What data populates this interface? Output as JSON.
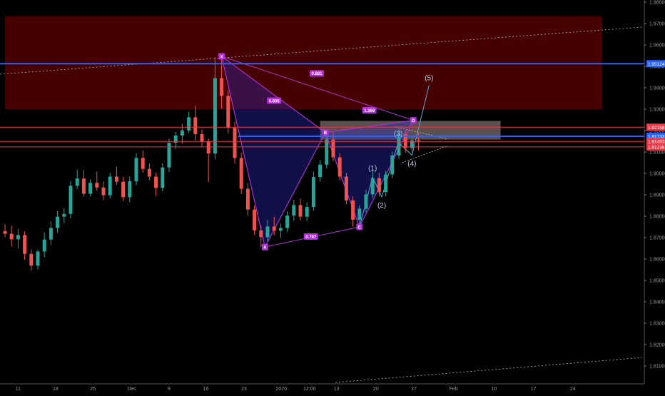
{
  "chart_data": {
    "type": "candlestick",
    "instrument_note": "",
    "y_ticks": [
      "1.98000",
      "1.97000",
      "1.96000",
      "1.95000",
      "1.94000",
      "1.93000",
      "1.92000",
      "1.91000",
      "1.90000",
      "1.89000",
      "1.88000",
      "1.87000",
      "1.86000",
      "1.85000",
      "1.84000",
      "1.83000",
      "1.82000",
      "1.81000"
    ],
    "x_ticks": [
      {
        "label": "11",
        "t": 2
      },
      {
        "label": "18",
        "t": 7.7
      },
      {
        "label": "25",
        "t": 13.4
      },
      {
        "label": "Dec",
        "t": 19.3
      },
      {
        "label": "9",
        "t": 25
      },
      {
        "label": "16",
        "t": 30.6
      },
      {
        "label": "23",
        "t": 36.4
      },
      {
        "label": "2020",
        "t": 42.1
      },
      {
        "label": "12:00",
        "t": 46.4
      },
      {
        "label": "13",
        "t": 50.5
      },
      {
        "label": "20",
        "t": 56.5
      },
      {
        "label": "27",
        "t": 62.3
      },
      {
        "label": "Feb",
        "t": 68.3
      },
      {
        "label": "10",
        "t": 74.5
      },
      {
        "label": "17",
        "t": 80.5
      },
      {
        "label": "24",
        "t": 86.5
      }
    ],
    "price_markers": [
      {
        "label": "1.95124",
        "value": 1.95124,
        "color": "#2962ff"
      },
      {
        "label": "1.91733",
        "value": 1.91733,
        "color": "#2962ff"
      },
      {
        "label": "1.92158",
        "value": 1.92158,
        "color": "#f23645"
      },
      {
        "label": "1.91493",
        "value": 1.91493,
        "color": "#f23645"
      },
      {
        "label": "1.91238",
        "value": 1.91238,
        "color": "#f23645"
      }
    ],
    "zones": [
      {
        "name": "supply-zone",
        "t_start": 0,
        "t_end": 91,
        "y_low": 1.93,
        "y_high": 1.9735,
        "color": "#4a0000"
      },
      {
        "name": "prz-box",
        "t_start": 48,
        "t_end": 75.5,
        "y_low": 1.9158,
        "y_high": 1.9245,
        "color": "#7a6a6a"
      }
    ],
    "harmonic_points": [
      {
        "label": "X",
        "t": 33.0,
        "y": 1.9547
      },
      {
        "label": "A",
        "t": 39.6,
        "y": 1.8656
      },
      {
        "label": "B",
        "t": 48.8,
        "y": 1.9191
      },
      {
        "label": "C",
        "t": 54.0,
        "y": 1.875
      },
      {
        "label": "D",
        "t": 62.2,
        "y": 1.9248
      }
    ],
    "ratio_labels": [
      {
        "text": "0.606",
        "t": 41.0,
        "y": 1.934
      },
      {
        "text": "0.797",
        "t": 46.6,
        "y": 1.8705
      },
      {
        "text": "1.369",
        "t": 55.5,
        "y": 1.9295
      },
      {
        "text": "0.881",
        "t": 47.5,
        "y": 1.9467
      }
    ],
    "wave_labels": [
      {
        "text": "(1)",
        "t": 56.0,
        "y": 1.9023
      },
      {
        "text": "(2)",
        "t": 57.4,
        "y": 1.885
      },
      {
        "text": "(3)",
        "t": 59.9,
        "y": 1.9185
      },
      {
        "text": "(4)",
        "t": 62.0,
        "y": 1.9045
      },
      {
        "text": "(5)",
        "t": 64.6,
        "y": 1.9445
      }
    ],
    "candles": [
      {
        "t": 0,
        "o": 1.873,
        "h": 1.8762,
        "l": 1.8702,
        "c": 1.8718
      },
      {
        "t": 1,
        "o": 1.8718,
        "h": 1.8755,
        "l": 1.8658,
        "c": 1.8692
      },
      {
        "t": 2,
        "o": 1.8692,
        "h": 1.8741,
        "l": 1.8649,
        "c": 1.8712
      },
      {
        "t": 3,
        "o": 1.8712,
        "h": 1.8729,
        "l": 1.8596,
        "c": 1.8624
      },
      {
        "t": 4,
        "o": 1.8624,
        "h": 1.8645,
        "l": 1.8545,
        "c": 1.8569
      },
      {
        "t": 5,
        "o": 1.8569,
        "h": 1.8643,
        "l": 1.8551,
        "c": 1.8635
      },
      {
        "t": 6,
        "o": 1.8635,
        "h": 1.8723,
        "l": 1.8608,
        "c": 1.8691
      },
      {
        "t": 7,
        "o": 1.8691,
        "h": 1.8776,
        "l": 1.8664,
        "c": 1.8745
      },
      {
        "t": 8,
        "o": 1.8745,
        "h": 1.8824,
        "l": 1.8723,
        "c": 1.8798
      },
      {
        "t": 9,
        "o": 1.8798,
        "h": 1.8838,
        "l": 1.8767,
        "c": 1.8811
      },
      {
        "t": 10,
        "o": 1.8811,
        "h": 1.8964,
        "l": 1.879,
        "c": 1.8942
      },
      {
        "t": 11,
        "o": 1.8942,
        "h": 1.9018,
        "l": 1.8927,
        "c": 1.8976
      },
      {
        "t": 12,
        "o": 1.8976,
        "h": 1.9015,
        "l": 1.8892,
        "c": 1.8905
      },
      {
        "t": 13,
        "o": 1.8905,
        "h": 1.8972,
        "l": 1.8893,
        "c": 1.8956
      },
      {
        "t": 14,
        "o": 1.8956,
        "h": 1.9008,
        "l": 1.8919,
        "c": 1.8934
      },
      {
        "t": 15,
        "o": 1.8934,
        "h": 1.8962,
        "l": 1.8875,
        "c": 1.8898
      },
      {
        "t": 16,
        "o": 1.8898,
        "h": 1.9002,
        "l": 1.8884,
        "c": 1.8985
      },
      {
        "t": 17,
        "o": 1.8985,
        "h": 1.9032,
        "l": 1.8947,
        "c": 1.8961
      },
      {
        "t": 18,
        "o": 1.8961,
        "h": 1.8985,
        "l": 1.8872,
        "c": 1.8889
      },
      {
        "t": 19,
        "o": 1.8889,
        "h": 1.8986,
        "l": 1.8866,
        "c": 1.8963
      },
      {
        "t": 20,
        "o": 1.8963,
        "h": 1.9094,
        "l": 1.8945,
        "c": 1.9072
      },
      {
        "t": 21,
        "o": 1.9072,
        "h": 1.9108,
        "l": 1.9003,
        "c": 1.9021
      },
      {
        "t": 22,
        "o": 1.9021,
        "h": 1.9046,
        "l": 1.8968,
        "c": 1.8985
      },
      {
        "t": 23,
        "o": 1.8985,
        "h": 1.9003,
        "l": 1.8895,
        "c": 1.8932
      },
      {
        "t": 24,
        "o": 1.8932,
        "h": 1.9047,
        "l": 1.8916,
        "c": 1.9028
      },
      {
        "t": 25,
        "o": 1.9028,
        "h": 1.9162,
        "l": 1.9006,
        "c": 1.9143
      },
      {
        "t": 26,
        "o": 1.9143,
        "h": 1.9193,
        "l": 1.9114,
        "c": 1.9177
      },
      {
        "t": 27,
        "o": 1.9177,
        "h": 1.9232,
        "l": 1.9139,
        "c": 1.9201
      },
      {
        "t": 28,
        "o": 1.9201,
        "h": 1.9288,
        "l": 1.9189,
        "c": 1.9262
      },
      {
        "t": 29,
        "o": 1.9262,
        "h": 1.9316,
        "l": 1.9155,
        "c": 1.9183
      },
      {
        "t": 30,
        "o": 1.9183,
        "h": 1.9205,
        "l": 1.9126,
        "c": 1.9148
      },
      {
        "t": 31,
        "o": 1.9148,
        "h": 1.9162,
        "l": 1.8961,
        "c": 1.9093
      },
      {
        "t": 32,
        "o": 1.9093,
        "h": 1.9542,
        "l": 1.9066,
        "c": 1.9445
      },
      {
        "t": 33,
        "o": 1.9445,
        "h": 1.9547,
        "l": 1.9302,
        "c": 1.9362
      },
      {
        "t": 34,
        "o": 1.9362,
        "h": 1.9389,
        "l": 1.9187,
        "c": 1.9213
      },
      {
        "t": 35,
        "o": 1.9213,
        "h": 1.9241,
        "l": 1.9046,
        "c": 1.9072
      },
      {
        "t": 36,
        "o": 1.9072,
        "h": 1.9097,
        "l": 1.8904,
        "c": 1.8928
      },
      {
        "t": 37,
        "o": 1.8928,
        "h": 1.8955,
        "l": 1.8803,
        "c": 1.8831
      },
      {
        "t": 38,
        "o": 1.8831,
        "h": 1.8849,
        "l": 1.8712,
        "c": 1.8734
      },
      {
        "t": 39,
        "o": 1.8734,
        "h": 1.8756,
        "l": 1.8656,
        "c": 1.8702
      },
      {
        "t": 40,
        "o": 1.8702,
        "h": 1.8784,
        "l": 1.8684,
        "c": 1.8752
      },
      {
        "t": 41,
        "o": 1.8752,
        "h": 1.8798,
        "l": 1.8711,
        "c": 1.8732
      },
      {
        "t": 42,
        "o": 1.8732,
        "h": 1.8766,
        "l": 1.8698,
        "c": 1.8745
      },
      {
        "t": 43,
        "o": 1.8745,
        "h": 1.8823,
        "l": 1.8727,
        "c": 1.8803
      },
      {
        "t": 44,
        "o": 1.8803,
        "h": 1.8877,
        "l": 1.8779,
        "c": 1.8852
      },
      {
        "t": 45,
        "o": 1.8852,
        "h": 1.8882,
        "l": 1.8781,
        "c": 1.8798
      },
      {
        "t": 46,
        "o": 1.8798,
        "h": 1.8865,
        "l": 1.8778,
        "c": 1.8843
      },
      {
        "t": 47,
        "o": 1.8843,
        "h": 1.9008,
        "l": 1.8825,
        "c": 1.8983
      },
      {
        "t": 48,
        "o": 1.8983,
        "h": 1.9062,
        "l": 1.8962,
        "c": 1.9041
      },
      {
        "t": 49,
        "o": 1.9041,
        "h": 1.9189,
        "l": 1.9023,
        "c": 1.9158
      },
      {
        "t": 50,
        "o": 1.9158,
        "h": 1.9192,
        "l": 1.9058,
        "c": 1.9075
      },
      {
        "t": 51,
        "o": 1.9075,
        "h": 1.9093,
        "l": 1.8968,
        "c": 1.8985
      },
      {
        "t": 52,
        "o": 1.8985,
        "h": 1.9002,
        "l": 1.8856,
        "c": 1.8874
      },
      {
        "t": 53,
        "o": 1.8874,
        "h": 1.8893,
        "l": 1.8751,
        "c": 1.8783
      },
      {
        "t": 54,
        "o": 1.8783,
        "h": 1.8851,
        "l": 1.8758,
        "c": 1.8835
      },
      {
        "t": 55,
        "o": 1.8835,
        "h": 1.8924,
        "l": 1.8817,
        "c": 1.8902
      },
      {
        "t": 56,
        "o": 1.8902,
        "h": 1.9018,
        "l": 1.8885,
        "c": 1.8978
      },
      {
        "t": 57,
        "o": 1.8978,
        "h": 1.9003,
        "l": 1.8892,
        "c": 1.8913
      },
      {
        "t": 58,
        "o": 1.8913,
        "h": 1.9012,
        "l": 1.8894,
        "c": 1.8995
      },
      {
        "t": 59,
        "o": 1.8995,
        "h": 1.9102,
        "l": 1.8978,
        "c": 1.9084
      },
      {
        "t": 60,
        "o": 1.9084,
        "h": 1.9218,
        "l": 1.9067,
        "c": 1.9183
      },
      {
        "t": 61,
        "o": 1.9183,
        "h": 1.9202,
        "l": 1.9096,
        "c": 1.9118
      },
      {
        "t": 62,
        "o": 1.9118,
        "h": 1.9172,
        "l": 1.9102,
        "c": 1.9155
      },
      {
        "t": 63,
        "o": 1.9155,
        "h": 1.9189,
        "l": 1.9108,
        "c": 1.9149
      }
    ]
  }
}
